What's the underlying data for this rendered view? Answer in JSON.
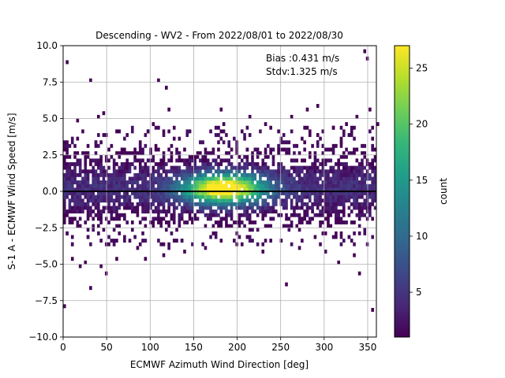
{
  "chart_data": {
    "type": "heatmap",
    "title": "Descending - WV2 - From 2022/08/01 to 2022/08/30",
    "xlabel": "ECMWF Azimuth Wind Direction [deg]",
    "ylabel": "S-1 A - ECMWF Wind Speed [m/s]",
    "xlim": [
      0,
      360
    ],
    "ylim": [
      -10,
      10
    ],
    "xticks": [
      0,
      50,
      100,
      150,
      200,
      250,
      300,
      350
    ],
    "yticks": [
      -10.0,
      -7.5,
      -5.0,
      -2.5,
      0.0,
      2.5,
      5.0,
      7.5,
      10.0
    ],
    "xtick_labels": [
      "0",
      "50",
      "100",
      "150",
      "200",
      "250",
      "300",
      "350"
    ],
    "ytick_labels": [
      "−10.0",
      "−7.5",
      "−5.0",
      "−2.5",
      "0.0",
      "2.5",
      "5.0",
      "7.5",
      "10.0"
    ],
    "grid": true,
    "reference_line_y": 0,
    "annotation": {
      "bias": "Bias :0.431 m/s",
      "stdv": "Stdv:1.325 m/s"
    },
    "colorbar": {
      "label": "count",
      "colormap": "viridis",
      "range": [
        1,
        27
      ],
      "ticks": [
        5,
        10,
        15,
        20,
        25
      ],
      "tick_labels": [
        "5",
        "10",
        "15",
        "20",
        "25"
      ]
    },
    "density": {
      "bin_width_deg": 3,
      "bin_height_ms": 0.25,
      "peak_count": 27,
      "peak_x_deg": 185,
      "peak_y_ms": 0.2,
      "core_y_range": [
        -2.5,
        3.0
      ],
      "core_x_range": [
        0,
        360
      ]
    },
    "outliers": [
      [
        1,
        -7.9
      ],
      [
        5,
        8.9
      ],
      [
        30,
        7.7
      ],
      [
        40,
        5.0
      ],
      [
        45,
        5.3
      ],
      [
        15,
        4.8
      ],
      [
        30,
        -6.7
      ],
      [
        42,
        -5.2
      ],
      [
        48,
        -5.6
      ],
      [
        60,
        -4.6
      ],
      [
        10,
        -4.7
      ],
      [
        18,
        -5.2
      ],
      [
        25,
        -4.8
      ],
      [
        95,
        -4.7
      ],
      [
        115,
        -4.4
      ],
      [
        138,
        -4.1
      ],
      [
        118,
        7.2
      ],
      [
        108,
        7.5
      ],
      [
        115,
        4.0
      ],
      [
        185,
        4.7
      ],
      [
        178,
        4.3
      ],
      [
        205,
        4.2
      ],
      [
        215,
        5.2
      ],
      [
        232,
        4.6
      ],
      [
        255,
        -6.5
      ],
      [
        262,
        5.1
      ],
      [
        272,
        -4.0
      ],
      [
        292,
        5.8
      ],
      [
        300,
        -4.2
      ],
      [
        315,
        -5.0
      ],
      [
        325,
        4.5
      ],
      [
        330,
        4.1
      ],
      [
        335,
        -4.5
      ],
      [
        340,
        -5.6
      ],
      [
        346,
        9.5
      ],
      [
        350,
        9.1
      ],
      [
        353,
        5.7
      ],
      [
        355,
        -8.2
      ],
      [
        338,
        5.2
      ],
      [
        102,
        4.6
      ],
      [
        85,
        -4.0
      ],
      [
        60,
        4.2
      ],
      [
        360,
        4.5
      ],
      [
        120,
        5.5
      ],
      [
        180,
        5.7
      ],
      [
        182,
        4.2
      ],
      [
        230,
        -4.2
      ],
      [
        250,
        -3.4
      ],
      [
        280,
        5.5
      ],
      [
        310,
        4.4
      ]
    ]
  }
}
